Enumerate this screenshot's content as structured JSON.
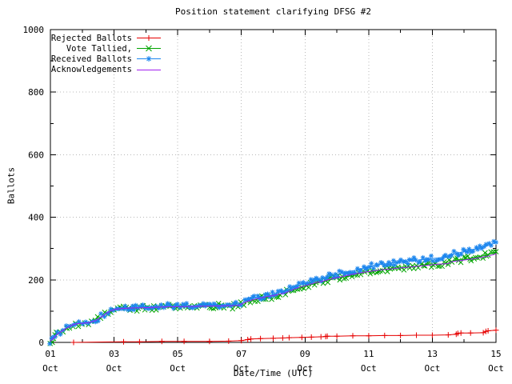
{
  "chart_data": {
    "type": "line",
    "title": "Position statement clarifying DFSG #2",
    "xlabel": "Date/Time (UTC)",
    "ylabel": "Ballots",
    "x_unit": "day of October",
    "xlim": [
      1,
      15
    ],
    "ylim": [
      0,
      1000
    ],
    "grid": "dotted",
    "legend_position": "top-left",
    "x_ticks": [
      {
        "pos": 1,
        "day": "01",
        "month": "Oct"
      },
      {
        "pos": 3,
        "day": "03",
        "month": "Oct"
      },
      {
        "pos": 5,
        "day": "05",
        "month": "Oct"
      },
      {
        "pos": 7,
        "day": "07",
        "month": "Oct"
      },
      {
        "pos": 9,
        "day": "09",
        "month": "Oct"
      },
      {
        "pos": 11,
        "day": "11",
        "month": "Oct"
      },
      {
        "pos": 13,
        "day": "13",
        "month": "Oct"
      },
      {
        "pos": 15,
        "day": "15",
        "month": "Oct"
      }
    ],
    "x_minor_tick_step": 1,
    "y_ticks": [
      {
        "pos": 0,
        "label": "0"
      },
      {
        "pos": 200,
        "label": "200"
      },
      {
        "pos": 400,
        "label": "400"
      },
      {
        "pos": 600,
        "label": "600"
      },
      {
        "pos": 800,
        "label": "800"
      },
      {
        "pos": 1000,
        "label": "1000"
      }
    ],
    "y_minor_tick_step": 100,
    "series": [
      {
        "name": "Rejected Ballots",
        "color": "#e60000",
        "marker": "plus",
        "marker_density": "sparse",
        "points": [
          [
            1.73,
            0
          ],
          [
            3.3,
            2
          ],
          [
            3.8,
            2
          ],
          [
            4.5,
            3
          ],
          [
            5.2,
            3
          ],
          [
            6.0,
            3
          ],
          [
            6.6,
            4
          ],
          [
            7.0,
            6
          ],
          [
            7.2,
            9
          ],
          [
            7.3,
            11
          ],
          [
            7.6,
            12
          ],
          [
            8.0,
            13
          ],
          [
            8.3,
            14
          ],
          [
            8.5,
            15
          ],
          [
            8.9,
            16
          ],
          [
            9.2,
            17
          ],
          [
            9.5,
            18
          ],
          [
            9.65,
            19
          ],
          [
            9.7,
            20
          ],
          [
            10.0,
            20
          ],
          [
            10.5,
            21
          ],
          [
            11.0,
            21
          ],
          [
            11.5,
            22
          ],
          [
            12.0,
            22
          ],
          [
            12.5,
            23
          ],
          [
            13.0,
            23
          ],
          [
            13.5,
            24
          ],
          [
            13.75,
            26
          ],
          [
            13.8,
            29
          ],
          [
            13.9,
            30
          ],
          [
            14.2,
            30
          ],
          [
            14.6,
            31
          ],
          [
            14.68,
            35
          ],
          [
            14.75,
            37
          ],
          [
            15.0,
            39
          ]
        ]
      },
      {
        "name": "Vote Tallied,",
        "color": "#00a400",
        "marker": "cross",
        "marker_density": "dense",
        "points": [
          [
            1.0,
            2
          ],
          [
            1.05,
            7
          ],
          [
            1.1,
            13
          ],
          [
            1.15,
            19
          ],
          [
            1.2,
            24
          ],
          [
            1.3,
            31
          ],
          [
            1.4,
            38
          ],
          [
            1.5,
            44
          ],
          [
            1.6,
            50
          ],
          [
            1.7,
            55
          ],
          [
            1.8,
            58
          ],
          [
            1.9,
            59
          ],
          [
            2.0,
            60
          ],
          [
            2.1,
            61
          ],
          [
            2.2,
            62
          ],
          [
            2.3,
            64
          ],
          [
            2.4,
            68
          ],
          [
            2.5,
            73
          ],
          [
            2.6,
            80
          ],
          [
            2.7,
            88
          ],
          [
            2.8,
            95
          ],
          [
            2.9,
            100
          ],
          [
            3.0,
            104
          ],
          [
            3.1,
            107
          ],
          [
            3.3,
            108
          ],
          [
            3.5,
            109
          ],
          [
            3.7,
            109
          ],
          [
            3.9,
            110
          ],
          [
            4.1,
            111
          ],
          [
            4.4,
            112
          ],
          [
            4.7,
            113
          ],
          [
            5.0,
            113
          ],
          [
            5.3,
            114
          ],
          [
            5.6,
            114
          ],
          [
            6.0,
            115
          ],
          [
            6.4,
            116
          ],
          [
            6.7,
            116
          ],
          [
            6.9,
            117
          ],
          [
            7.0,
            121
          ],
          [
            7.1,
            127
          ],
          [
            7.2,
            131
          ],
          [
            7.35,
            135
          ],
          [
            7.5,
            138
          ],
          [
            7.7,
            142
          ],
          [
            7.9,
            145
          ],
          [
            8.1,
            150
          ],
          [
            8.3,
            156
          ],
          [
            8.5,
            163
          ],
          [
            8.7,
            170
          ],
          [
            8.9,
            177
          ],
          [
            9.1,
            182
          ],
          [
            9.3,
            188
          ],
          [
            9.5,
            193
          ],
          [
            9.7,
            198
          ],
          [
            9.9,
            203
          ],
          [
            10.1,
            208
          ],
          [
            10.3,
            212
          ],
          [
            10.5,
            216
          ],
          [
            10.7,
            220
          ],
          [
            10.9,
            224
          ],
          [
            11.1,
            228
          ],
          [
            11.3,
            231
          ],
          [
            11.5,
            234
          ],
          [
            11.7,
            236
          ],
          [
            11.9,
            238
          ],
          [
            12.1,
            240
          ],
          [
            12.3,
            242
          ],
          [
            12.5,
            244
          ],
          [
            12.7,
            246
          ],
          [
            12.9,
            248
          ],
          [
            13.1,
            250
          ],
          [
            13.3,
            251
          ],
          [
            13.5,
            253
          ],
          [
            13.55,
            259
          ],
          [
            13.7,
            261
          ],
          [
            13.9,
            264
          ],
          [
            14.1,
            267
          ],
          [
            14.3,
            271
          ],
          [
            14.5,
            275
          ],
          [
            14.7,
            279
          ],
          [
            14.85,
            283
          ],
          [
            15.0,
            290
          ]
        ]
      },
      {
        "name": "Received Ballots",
        "color": "#1c86ee",
        "marker": "asterisk",
        "marker_density": "dense",
        "points": [
          [
            1.0,
            4
          ],
          [
            1.05,
            10
          ],
          [
            1.1,
            16
          ],
          [
            1.15,
            22
          ],
          [
            1.2,
            27
          ],
          [
            1.3,
            34
          ],
          [
            1.4,
            41
          ],
          [
            1.5,
            47
          ],
          [
            1.6,
            53
          ],
          [
            1.7,
            58
          ],
          [
            1.8,
            61
          ],
          [
            1.9,
            62
          ],
          [
            2.0,
            63
          ],
          [
            2.1,
            64
          ],
          [
            2.2,
            65
          ],
          [
            2.3,
            67
          ],
          [
            2.4,
            71
          ],
          [
            2.5,
            76
          ],
          [
            2.6,
            83
          ],
          [
            2.7,
            91
          ],
          [
            2.8,
            98
          ],
          [
            2.9,
            103
          ],
          [
            3.0,
            107
          ],
          [
            3.1,
            110
          ],
          [
            3.3,
            111
          ],
          [
            3.5,
            112
          ],
          [
            3.7,
            112
          ],
          [
            3.9,
            113
          ],
          [
            4.1,
            114
          ],
          [
            4.4,
            115
          ],
          [
            4.7,
            116
          ],
          [
            5.0,
            116
          ],
          [
            5.3,
            117
          ],
          [
            5.6,
            117
          ],
          [
            6.0,
            118
          ],
          [
            6.4,
            119
          ],
          [
            6.7,
            119
          ],
          [
            6.9,
            120
          ],
          [
            7.0,
            125
          ],
          [
            7.1,
            131
          ],
          [
            7.2,
            136
          ],
          [
            7.35,
            140
          ],
          [
            7.5,
            143
          ],
          [
            7.7,
            147
          ],
          [
            7.9,
            150
          ],
          [
            8.1,
            156
          ],
          [
            8.3,
            163
          ],
          [
            8.5,
            170
          ],
          [
            8.7,
            178
          ],
          [
            8.9,
            186
          ],
          [
            9.1,
            191
          ],
          [
            9.3,
            197
          ],
          [
            9.5,
            203
          ],
          [
            9.7,
            209
          ],
          [
            9.9,
            215
          ],
          [
            10.1,
            220
          ],
          [
            10.3,
            225
          ],
          [
            10.5,
            229
          ],
          [
            10.7,
            234
          ],
          [
            10.9,
            239
          ],
          [
            11.1,
            244
          ],
          [
            11.3,
            248
          ],
          [
            11.5,
            251
          ],
          [
            11.7,
            254
          ],
          [
            11.9,
            256
          ],
          [
            12.1,
            259
          ],
          [
            12.3,
            261
          ],
          [
            12.5,
            263
          ],
          [
            12.7,
            265
          ],
          [
            12.9,
            267
          ],
          [
            13.1,
            269
          ],
          [
            13.3,
            271
          ],
          [
            13.5,
            273
          ],
          [
            13.55,
            280
          ],
          [
            13.7,
            283
          ],
          [
            13.9,
            288
          ],
          [
            14.1,
            293
          ],
          [
            14.3,
            298
          ],
          [
            14.5,
            303
          ],
          [
            14.7,
            308
          ],
          [
            14.85,
            313
          ],
          [
            15.0,
            320
          ]
        ]
      },
      {
        "name": "Acknowledgements",
        "color": "#a020f0",
        "marker": "none",
        "marker_density": "none",
        "points": [
          [
            1.0,
            3
          ],
          [
            1.1,
            14
          ],
          [
            1.2,
            25
          ],
          [
            1.3,
            32
          ],
          [
            1.4,
            39
          ],
          [
            1.5,
            45
          ],
          [
            1.6,
            51
          ],
          [
            1.7,
            56
          ],
          [
            1.8,
            59
          ],
          [
            2.0,
            61
          ],
          [
            2.2,
            63
          ],
          [
            2.4,
            69
          ],
          [
            2.6,
            81
          ],
          [
            2.8,
            96
          ],
          [
            3.0,
            105
          ],
          [
            3.2,
            108
          ],
          [
            3.5,
            110
          ],
          [
            4.0,
            111
          ],
          [
            4.5,
            113
          ],
          [
            5.0,
            114
          ],
          [
            5.5,
            115
          ],
          [
            6.0,
            116
          ],
          [
            6.5,
            117
          ],
          [
            6.9,
            118
          ],
          [
            7.0,
            122
          ],
          [
            7.2,
            132
          ],
          [
            7.5,
            140
          ],
          [
            7.8,
            146
          ],
          [
            8.1,
            152
          ],
          [
            8.4,
            159
          ],
          [
            8.7,
            172
          ],
          [
            9.0,
            181
          ],
          [
            9.3,
            190
          ],
          [
            9.6,
            197
          ],
          [
            9.9,
            205
          ],
          [
            10.2,
            211
          ],
          [
            10.5,
            218
          ],
          [
            10.8,
            223
          ],
          [
            11.1,
            228
          ],
          [
            11.4,
            232
          ],
          [
            11.7,
            235
          ],
          [
            12.0,
            238
          ],
          [
            12.3,
            241
          ],
          [
            12.6,
            244
          ],
          [
            12.9,
            247
          ],
          [
            13.2,
            250
          ],
          [
            13.5,
            252
          ],
          [
            13.6,
            258
          ],
          [
            13.9,
            262
          ],
          [
            14.2,
            266
          ],
          [
            14.5,
            271
          ],
          [
            14.8,
            277
          ],
          [
            15.0,
            283
          ]
        ]
      }
    ]
  }
}
